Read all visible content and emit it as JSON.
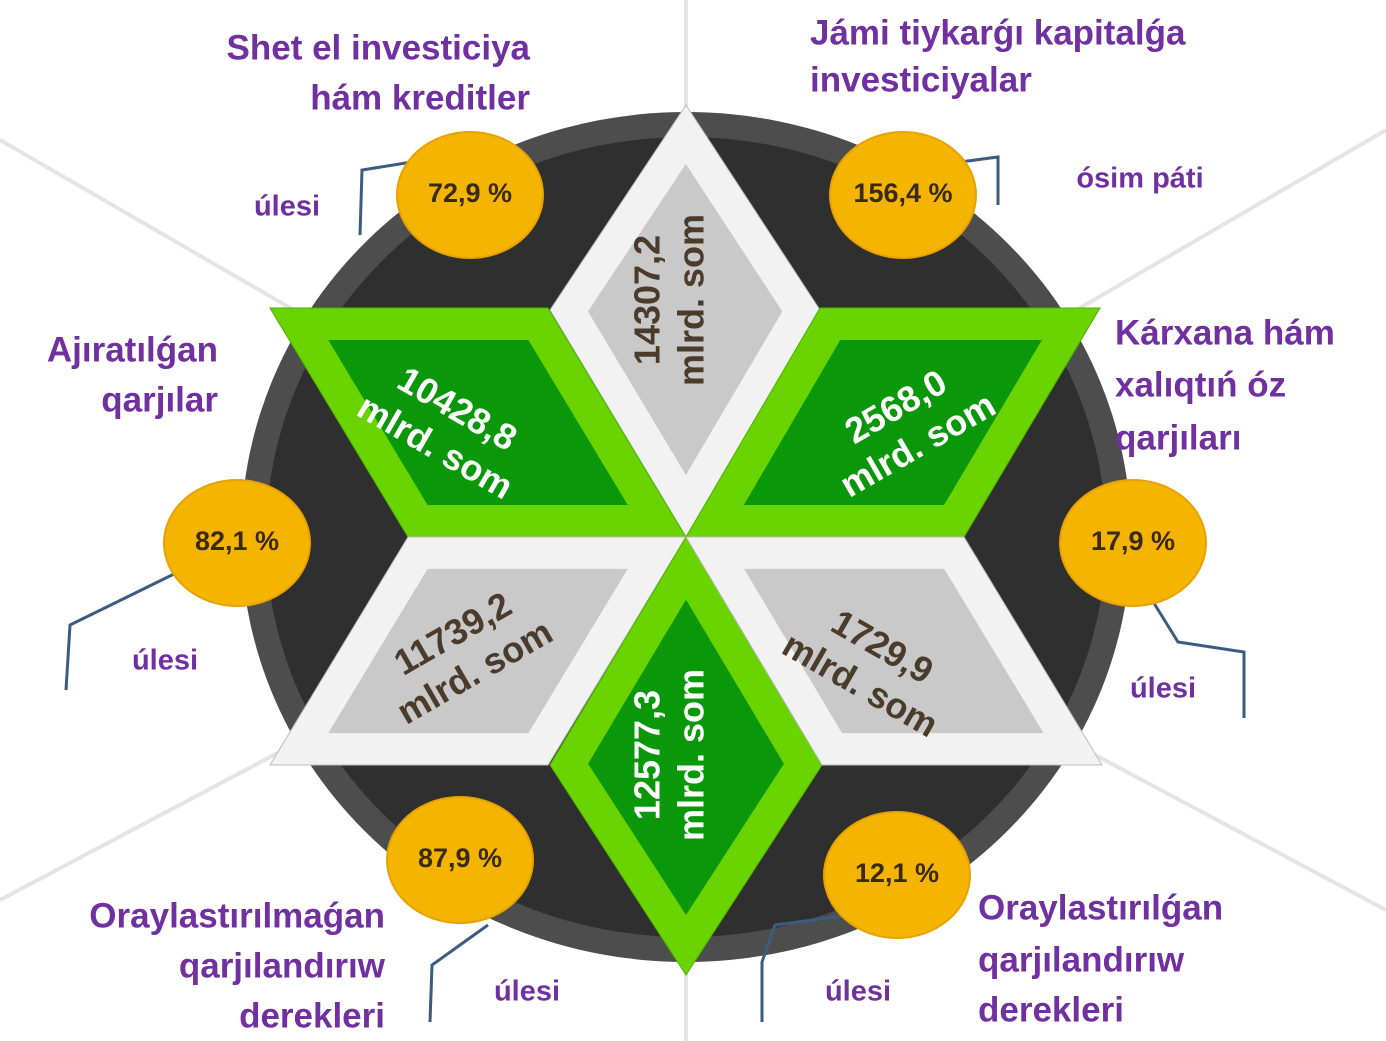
{
  "titles": [
    [
      "Shet el investiciya",
      "hám kreditler"
    ],
    [
      "Jámi tiykarǵı kapitalǵa",
      "investiciyalar"
    ],
    [
      "Ajıratılǵan",
      "qarjılar"
    ],
    [
      "Kárxana hám",
      "xalıqtıń óz",
      "qarjıları"
    ],
    [
      "Oraylastırılmaǵan",
      "qarjılandırıw",
      "derekleri"
    ],
    [
      "Oraylastırılǵan",
      "qarjılandırıw",
      "derekleri"
    ]
  ],
  "values": [
    [
      "14307,2",
      "mlrd. som"
    ],
    [
      "10428,8",
      "mlrd. som"
    ],
    [
      "2568,0",
      "mlrd. som"
    ],
    [
      "11739,2",
      "mlrd. som"
    ],
    [
      "12577,3",
      "mlrd. som"
    ],
    [
      "1729,9",
      "mlrd. som"
    ]
  ],
  "badges": [
    {
      "text": "72,9 %",
      "label": "úlesi"
    },
    {
      "text": "156,4 %",
      "label": "ósim páti"
    },
    {
      "text": "82,1 %",
      "label": "úlesi"
    },
    {
      "text": "17,9 %",
      "label": "úlesi"
    },
    {
      "text": "87,9 %",
      "label": "úlesi"
    },
    {
      "text": "12,1 %",
      "label": "úlesi"
    }
  ]
}
